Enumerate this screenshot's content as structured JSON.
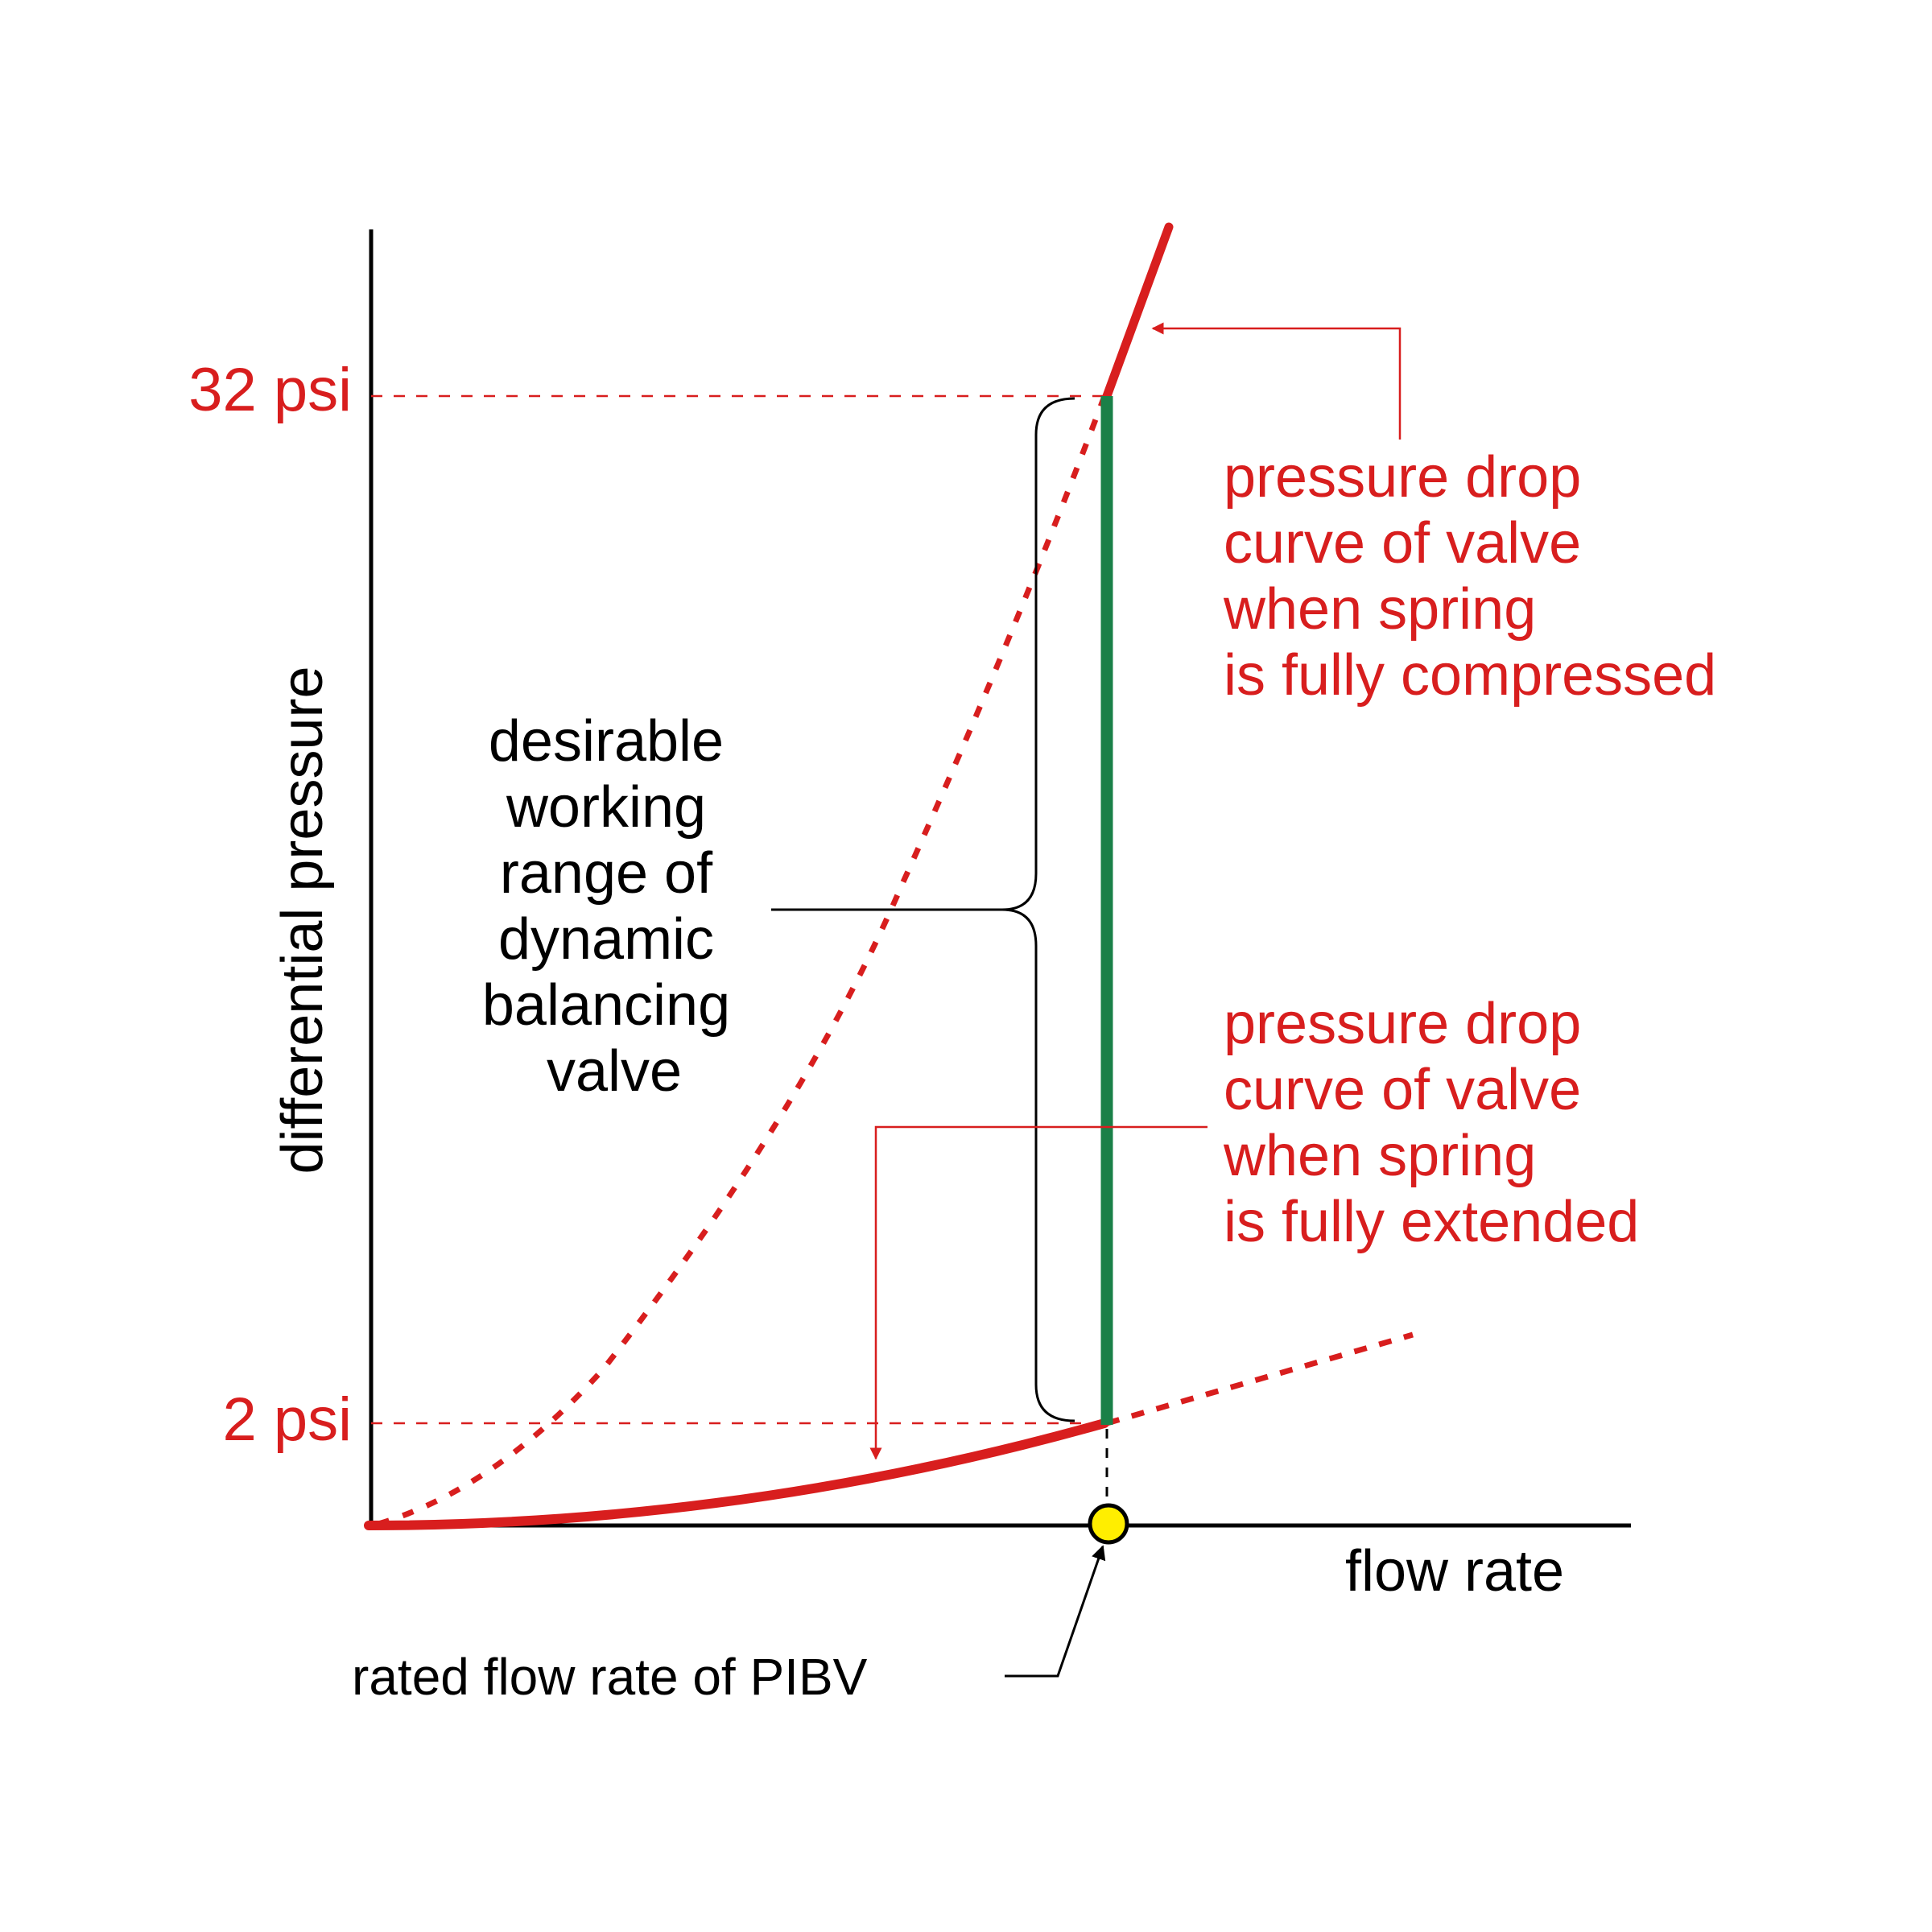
{
  "colors": {
    "red": "#d81e1e",
    "green": "#1a8048",
    "black": "#000000",
    "marker_fill": "#ffee00"
  },
  "y_ticks": {
    "high": "32 psi",
    "low": "2 psi"
  },
  "axes": {
    "y_label": "differential pressure",
    "x_label": "flow rate"
  },
  "working_range_label": {
    "lines": [
      "desirable",
      "working",
      "range of",
      "dynamic",
      "balancing",
      "valve"
    ]
  },
  "compressed_label": {
    "lines": [
      "pressure drop",
      "curve of valve",
      "when spring",
      "is fully compressed"
    ]
  },
  "extended_label": {
    "lines": [
      "pressure drop",
      "curve of valve",
      "when spring",
      "is fully extended"
    ]
  },
  "rated_label": "rated flow rate of PIBV"
}
